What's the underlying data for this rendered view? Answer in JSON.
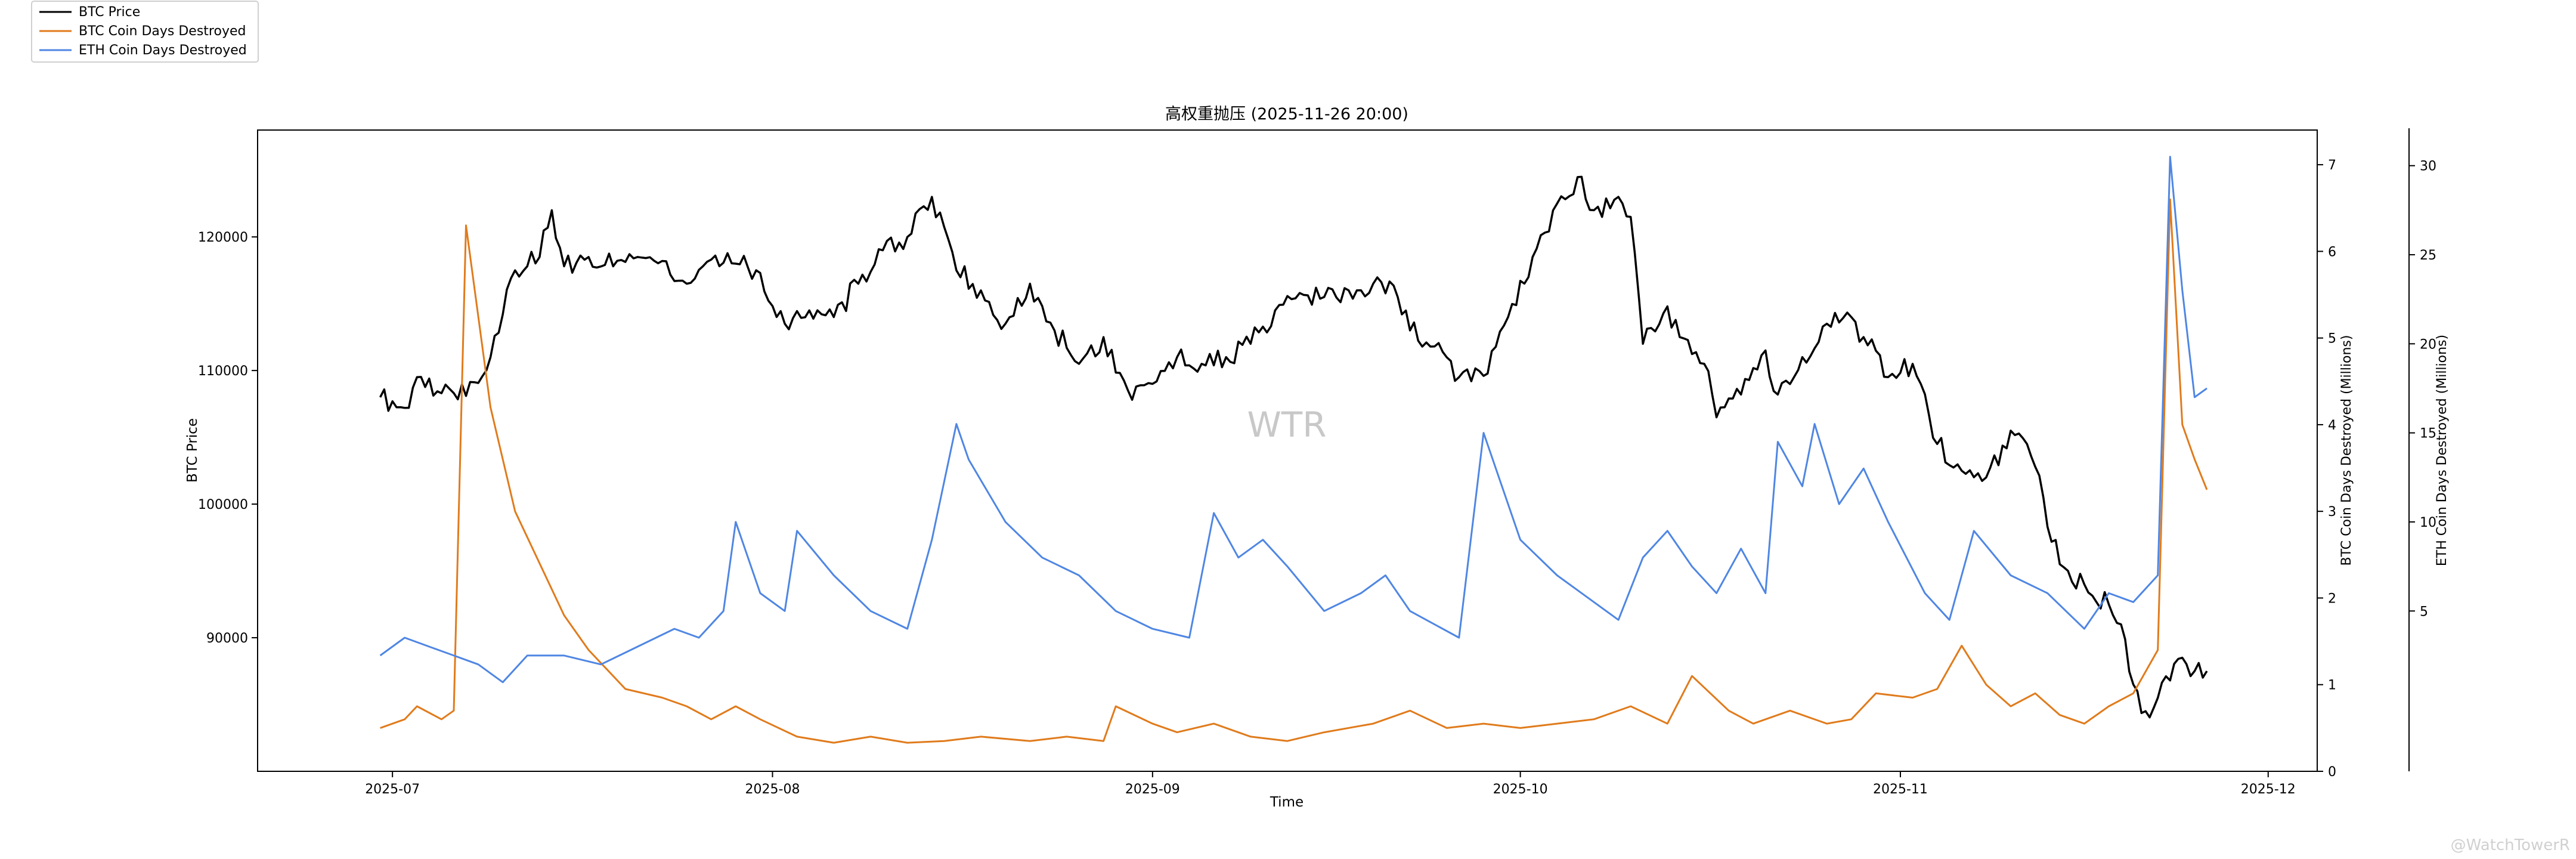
{
  "chart_data": {
    "type": "line",
    "title": "高权重抛压 (2025-11-26 20:00)",
    "xlabel": "Time",
    "ylabel_left": "BTC Price",
    "ylabel_right1": "BTC Coin Days Destroyed (Millions)",
    "ylabel_right2": "ETH Coin Days Destroyed (Millions)",
    "watermark": "WTR",
    "corner_mark": "@WatchTowerR",
    "x_range": [
      "2025-06-20",
      "2025-12-05"
    ],
    "x_ticks": [
      "2025-07-01",
      "2025-08-01",
      "2025-09-01",
      "2025-10-01",
      "2025-11-01",
      "2025-12-01"
    ],
    "x_tick_labels": [
      "2025-07",
      "2025-08",
      "2025-09",
      "2025-10",
      "2025-11",
      "2025-12"
    ],
    "ylim_left": [
      80000,
      128000
    ],
    "yticks_left": [
      90000,
      100000,
      110000,
      120000
    ],
    "ylim_right1": [
      0,
      7.4
    ],
    "yticks_right1": [
      0,
      1,
      2,
      3,
      4,
      5,
      6,
      7
    ],
    "ylim_right2": [
      -4,
      32
    ],
    "yticks_right2": [
      5,
      10,
      15,
      20,
      25,
      30
    ],
    "legend": {
      "placement": "upper-left",
      "entries": [
        "BTC Price",
        "BTC Coin Days Destroyed",
        "ETH Coin Days Destroyed"
      ]
    },
    "series": [
      {
        "name": "BTC Price",
        "axis": "left",
        "color": "#000000",
        "points": [
          [
            "2025-06-30",
            108000
          ],
          [
            "2025-07-02",
            107200
          ],
          [
            "2025-07-03",
            109500
          ],
          [
            "2025-07-05",
            108300
          ],
          [
            "2025-07-07",
            108100
          ],
          [
            "2025-07-09",
            111000
          ],
          [
            "2025-07-11",
            117500
          ],
          [
            "2025-07-13",
            118500
          ],
          [
            "2025-07-14",
            122000
          ],
          [
            "2025-07-15",
            117800
          ],
          [
            "2025-07-17",
            118500
          ],
          [
            "2025-07-19",
            117800
          ],
          [
            "2025-07-21",
            118500
          ],
          [
            "2025-07-23",
            118200
          ],
          [
            "2025-07-25",
            116500
          ],
          [
            "2025-07-27",
            118300
          ],
          [
            "2025-07-29",
            118000
          ],
          [
            "2025-07-31",
            117300
          ],
          [
            "2025-08-02",
            113500
          ],
          [
            "2025-08-04",
            114500
          ],
          [
            "2025-08-06",
            114000
          ],
          [
            "2025-08-08",
            116500
          ],
          [
            "2025-08-10",
            119000
          ],
          [
            "2025-08-12",
            120000
          ],
          [
            "2025-08-14",
            123000
          ],
          [
            "2025-08-16",
            117500
          ],
          [
            "2025-08-18",
            116000
          ],
          [
            "2025-08-20",
            113500
          ],
          [
            "2025-08-22",
            116500
          ],
          [
            "2025-08-24",
            113000
          ],
          [
            "2025-08-26",
            110500
          ],
          [
            "2025-08-28",
            112500
          ],
          [
            "2025-08-30",
            108500
          ],
          [
            "2025-09-01",
            109000
          ],
          [
            "2025-09-03",
            111000
          ],
          [
            "2025-09-05",
            110500
          ],
          [
            "2025-09-07",
            111000
          ],
          [
            "2025-09-09",
            112000
          ],
          [
            "2025-09-11",
            114500
          ],
          [
            "2025-09-13",
            115800
          ],
          [
            "2025-09-15",
            115500
          ],
          [
            "2025-09-17",
            116000
          ],
          [
            "2025-09-19",
            116500
          ],
          [
            "2025-09-21",
            115500
          ],
          [
            "2025-09-22",
            113000
          ],
          [
            "2025-09-24",
            111800
          ],
          [
            "2025-09-26",
            109500
          ],
          [
            "2025-09-28",
            109600
          ],
          [
            "2025-09-30",
            114000
          ],
          [
            "2025-10-02",
            118500
          ],
          [
            "2025-10-04",
            122500
          ],
          [
            "2025-10-06",
            124500
          ],
          [
            "2025-10-07",
            122000
          ],
          [
            "2025-10-09",
            123000
          ],
          [
            "2025-10-10",
            121500
          ],
          [
            "2025-10-11",
            112000
          ],
          [
            "2025-10-13",
            114800
          ],
          [
            "2025-10-14",
            112500
          ],
          [
            "2025-10-16",
            110500
          ],
          [
            "2025-10-17",
            106500
          ],
          [
            "2025-10-19",
            108200
          ],
          [
            "2025-10-21",
            111500
          ],
          [
            "2025-10-22",
            108200
          ],
          [
            "2025-10-24",
            111000
          ],
          [
            "2025-10-26",
            113500
          ],
          [
            "2025-10-28",
            114000
          ],
          [
            "2025-10-29",
            112500
          ],
          [
            "2025-10-31",
            109500
          ],
          [
            "2025-11-02",
            110500
          ],
          [
            "2025-11-04",
            104500
          ],
          [
            "2025-11-06",
            102500
          ],
          [
            "2025-11-08",
            102000
          ],
          [
            "2025-11-10",
            105500
          ],
          [
            "2025-11-12",
            102800
          ],
          [
            "2025-11-14",
            95500
          ],
          [
            "2025-11-16",
            94000
          ],
          [
            "2025-11-18",
            92500
          ],
          [
            "2025-11-19",
            91000
          ],
          [
            "2025-11-20",
            86500
          ],
          [
            "2025-11-21",
            84500
          ],
          [
            "2025-11-22",
            85500
          ],
          [
            "2025-11-23",
            86800
          ],
          [
            "2025-11-24",
            88500
          ],
          [
            "2025-11-25",
            87500
          ],
          [
            "2025-11-26",
            87500
          ]
        ]
      },
      {
        "name": "BTC Coin Days Destroyed",
        "axis": "right1",
        "color": "#e07b1c",
        "points": [
          [
            "2025-06-30",
            0.5
          ],
          [
            "2025-07-02",
            0.6
          ],
          [
            "2025-07-03",
            0.75
          ],
          [
            "2025-07-05",
            0.6
          ],
          [
            "2025-07-06",
            0.7
          ],
          [
            "2025-07-07",
            6.3
          ],
          [
            "2025-07-09",
            4.2
          ],
          [
            "2025-07-11",
            3.0
          ],
          [
            "2025-07-13",
            2.4
          ],
          [
            "2025-07-15",
            1.8
          ],
          [
            "2025-07-17",
            1.4
          ],
          [
            "2025-07-20",
            0.95
          ],
          [
            "2025-07-23",
            0.85
          ],
          [
            "2025-07-25",
            0.75
          ],
          [
            "2025-07-27",
            0.6
          ],
          [
            "2025-07-29",
            0.75
          ],
          [
            "2025-07-31",
            0.6
          ],
          [
            "2025-08-03",
            0.4
          ],
          [
            "2025-08-06",
            0.33
          ],
          [
            "2025-08-09",
            0.4
          ],
          [
            "2025-08-12",
            0.33
          ],
          [
            "2025-08-15",
            0.35
          ],
          [
            "2025-08-18",
            0.4
          ],
          [
            "2025-08-22",
            0.35
          ],
          [
            "2025-08-25",
            0.4
          ],
          [
            "2025-08-28",
            0.35
          ],
          [
            "2025-08-29",
            0.75
          ],
          [
            "2025-09-01",
            0.55
          ],
          [
            "2025-09-03",
            0.45
          ],
          [
            "2025-09-06",
            0.55
          ],
          [
            "2025-09-09",
            0.4
          ],
          [
            "2025-09-12",
            0.35
          ],
          [
            "2025-09-15",
            0.45
          ],
          [
            "2025-09-19",
            0.55
          ],
          [
            "2025-09-22",
            0.7
          ],
          [
            "2025-09-25",
            0.5
          ],
          [
            "2025-09-28",
            0.55
          ],
          [
            "2025-10-01",
            0.5
          ],
          [
            "2025-10-04",
            0.55
          ],
          [
            "2025-10-07",
            0.6
          ],
          [
            "2025-10-10",
            0.75
          ],
          [
            "2025-10-13",
            0.55
          ],
          [
            "2025-10-15",
            1.1
          ],
          [
            "2025-10-18",
            0.7
          ],
          [
            "2025-10-20",
            0.55
          ],
          [
            "2025-10-23",
            0.7
          ],
          [
            "2025-10-26",
            0.55
          ],
          [
            "2025-10-28",
            0.6
          ],
          [
            "2025-10-30",
            0.9
          ],
          [
            "2025-11-02",
            0.85
          ],
          [
            "2025-11-04",
            0.95
          ],
          [
            "2025-11-06",
            1.45
          ],
          [
            "2025-11-08",
            1.0
          ],
          [
            "2025-11-10",
            0.75
          ],
          [
            "2025-11-12",
            0.9
          ],
          [
            "2025-11-14",
            0.65
          ],
          [
            "2025-11-16",
            0.55
          ],
          [
            "2025-11-18",
            0.75
          ],
          [
            "2025-11-20",
            0.9
          ],
          [
            "2025-11-22",
            1.4
          ],
          [
            "2025-11-23",
            6.6
          ],
          [
            "2025-11-24",
            4.0
          ],
          [
            "2025-11-25",
            3.6
          ],
          [
            "2025-11-26",
            3.25
          ]
        ]
      },
      {
        "name": "ETH Coin Days Destroyed",
        "axis": "right2",
        "color": "#4f86e3",
        "points": [
          [
            "2025-06-30",
            2.5
          ],
          [
            "2025-07-02",
            3.5
          ],
          [
            "2025-07-04",
            3.0
          ],
          [
            "2025-07-06",
            2.5
          ],
          [
            "2025-07-08",
            2.0
          ],
          [
            "2025-07-10",
            1.0
          ],
          [
            "2025-07-12",
            2.5
          ],
          [
            "2025-07-15",
            2.5
          ],
          [
            "2025-07-18",
            2.0
          ],
          [
            "2025-07-21",
            3.0
          ],
          [
            "2025-07-24",
            4.0
          ],
          [
            "2025-07-26",
            3.5
          ],
          [
            "2025-07-28",
            5.0
          ],
          [
            "2025-07-29",
            10.0
          ],
          [
            "2025-07-31",
            6.0
          ],
          [
            "2025-08-02",
            5.0
          ],
          [
            "2025-08-03",
            9.5
          ],
          [
            "2025-08-06",
            7.0
          ],
          [
            "2025-08-09",
            5.0
          ],
          [
            "2025-08-12",
            4.0
          ],
          [
            "2025-08-14",
            9.0
          ],
          [
            "2025-08-16",
            15.5
          ],
          [
            "2025-08-17",
            13.5
          ],
          [
            "2025-08-20",
            10.0
          ],
          [
            "2025-08-23",
            8.0
          ],
          [
            "2025-08-26",
            7.0
          ],
          [
            "2025-08-29",
            5.0
          ],
          [
            "2025-09-01",
            4.0
          ],
          [
            "2025-09-04",
            3.5
          ],
          [
            "2025-09-06",
            10.5
          ],
          [
            "2025-09-08",
            8.0
          ],
          [
            "2025-09-10",
            9.0
          ],
          [
            "2025-09-12",
            7.5
          ],
          [
            "2025-09-15",
            5.0
          ],
          [
            "2025-09-18",
            6.0
          ],
          [
            "2025-09-20",
            7.0
          ],
          [
            "2025-09-22",
            5.0
          ],
          [
            "2025-09-26",
            3.5
          ],
          [
            "2025-09-28",
            15.0
          ],
          [
            "2025-10-01",
            9.0
          ],
          [
            "2025-10-04",
            7.0
          ],
          [
            "2025-10-07",
            5.5
          ],
          [
            "2025-10-09",
            4.5
          ],
          [
            "2025-10-11",
            8.0
          ],
          [
            "2025-10-13",
            9.5
          ],
          [
            "2025-10-15",
            7.5
          ],
          [
            "2025-10-17",
            6.0
          ],
          [
            "2025-10-19",
            8.5
          ],
          [
            "2025-10-21",
            6.0
          ],
          [
            "2025-10-22",
            14.5
          ],
          [
            "2025-10-24",
            12.0
          ],
          [
            "2025-10-25",
            15.5
          ],
          [
            "2025-10-27",
            11.0
          ],
          [
            "2025-10-29",
            13.0
          ],
          [
            "2025-10-31",
            10.0
          ],
          [
            "2025-11-03",
            6.0
          ],
          [
            "2025-11-05",
            4.5
          ],
          [
            "2025-11-07",
            9.5
          ],
          [
            "2025-11-10",
            7.0
          ],
          [
            "2025-11-13",
            6.0
          ],
          [
            "2025-11-16",
            4.0
          ],
          [
            "2025-11-18",
            6.0
          ],
          [
            "2025-11-20",
            5.5
          ],
          [
            "2025-11-22",
            7.0
          ],
          [
            "2025-11-23",
            30.5
          ],
          [
            "2025-11-24",
            23.0
          ],
          [
            "2025-11-25",
            17.0
          ],
          [
            "2025-11-26",
            17.5
          ]
        ]
      }
    ]
  }
}
